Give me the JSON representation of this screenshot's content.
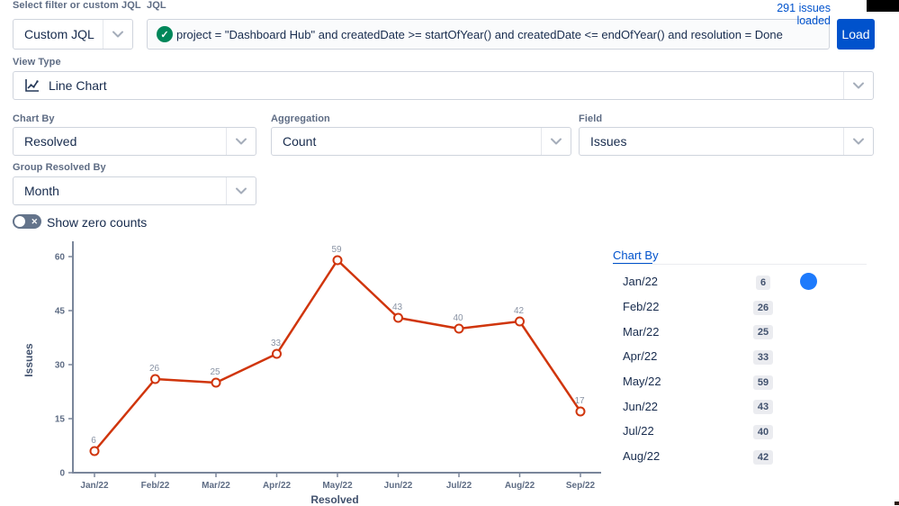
{
  "header": {
    "filter_label": "Select filter or custom JQL",
    "filter_value": "Custom JQL",
    "jql_label": "JQL",
    "jql_valid_icon": "check-circle",
    "jql_value": "project = \"Dashboard Hub\" and createdDate >= startOfYear() and createdDate <= endOfYear() and resolution = Done",
    "issues_loaded": "291 issues loaded",
    "load_label": "Load"
  },
  "controls": {
    "view_type_label": "View Type",
    "view_type_value": "Line Chart",
    "view_type_icon": "line-chart-icon",
    "chart_by_label": "Chart By",
    "chart_by_value": "Resolved",
    "aggregation_label": "Aggregation",
    "aggregation_value": "Count",
    "field_label": "Field",
    "field_value": "Issues",
    "group_by_label": "Group Resolved By",
    "group_by_value": "Month",
    "show_zero_label": "Show zero counts",
    "show_zero_state": "off"
  },
  "chart_data": {
    "type": "line",
    "title": "",
    "categories": [
      "Jan/22",
      "Feb/22",
      "Mar/22",
      "Apr/22",
      "May/22",
      "Jun/22",
      "Jul/22",
      "Aug/22",
      "Sep/22"
    ],
    "values": [
      6,
      26,
      25,
      33,
      59,
      43,
      40,
      42,
      17
    ],
    "xlabel": "Resolved",
    "ylabel": "Issues",
    "yticks": [
      0,
      15,
      30,
      45,
      60
    ],
    "ylim": [
      0,
      63
    ],
    "grid": false,
    "legend": "none",
    "line_color": "#D0350C",
    "marker": "open-circle",
    "axis_color": "#7A869A",
    "data_label_color": "#8993A4"
  },
  "side_panel": {
    "title": "Chart By",
    "rows": [
      {
        "label": "Jan/22",
        "value": "6",
        "swatch": "#1D7AFC"
      },
      {
        "label": "Feb/22",
        "value": "26"
      },
      {
        "label": "Mar/22",
        "value": "25"
      },
      {
        "label": "Apr/22",
        "value": "33"
      },
      {
        "label": "May/22",
        "value": "59"
      },
      {
        "label": "Jun/22",
        "value": "43"
      },
      {
        "label": "Jul/22",
        "value": "40"
      },
      {
        "label": "Aug/22",
        "value": "42"
      }
    ]
  },
  "colors": {
    "accent_blue": "#0052CC",
    "link_blue": "#0052CC",
    "series_red": "#D0350C",
    "swatch_blue": "#1D7AFC",
    "success_green": "#00875A",
    "badge_bg": "#EBECF0",
    "label_gray": "#5E6C84"
  }
}
